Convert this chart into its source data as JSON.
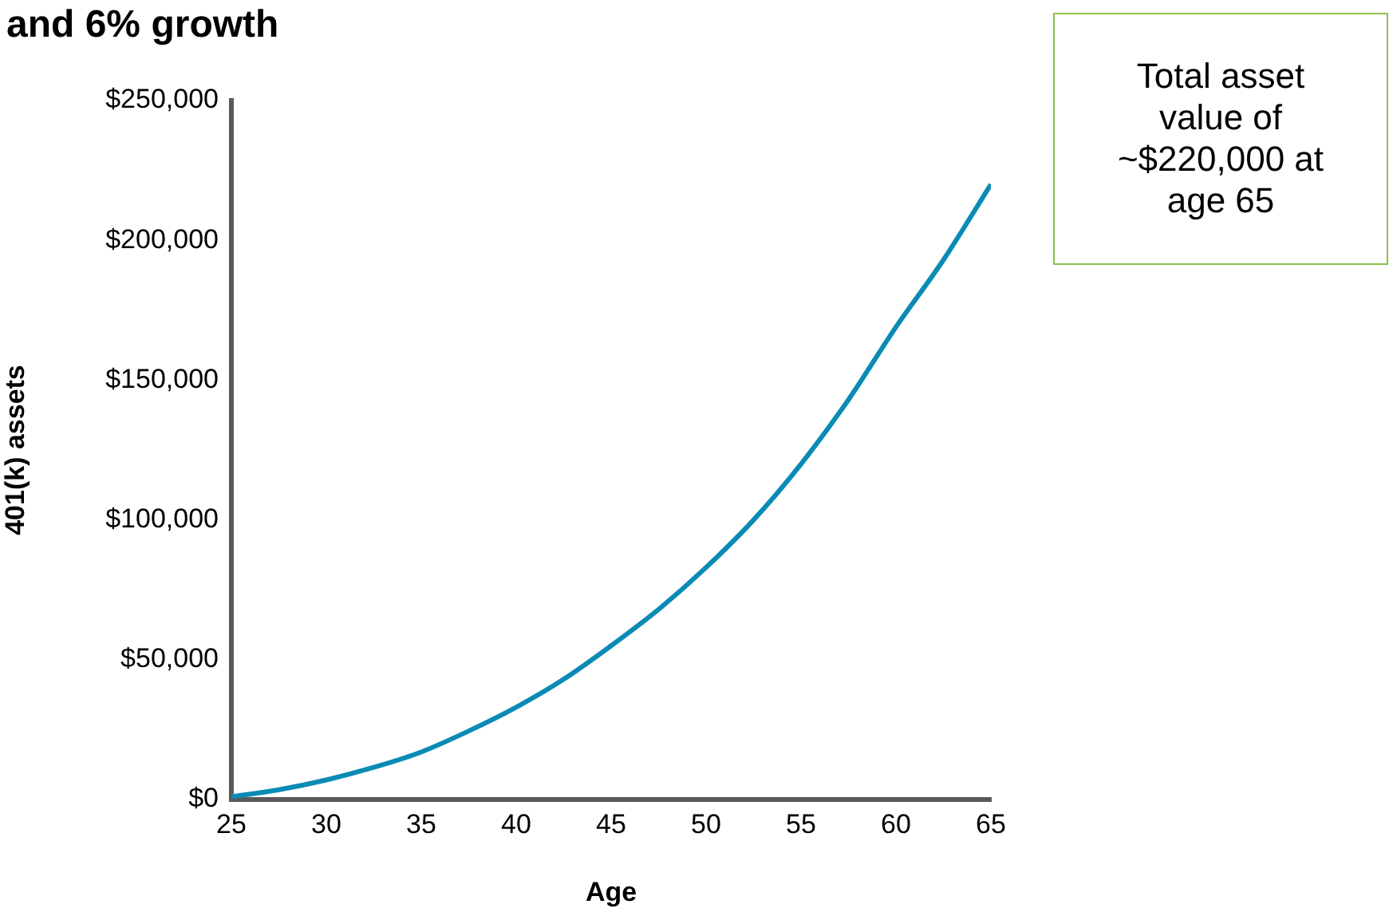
{
  "chart_data": {
    "type": "line",
    "title": "and 6% growth",
    "xlabel": "Age",
    "ylabel": "401(k) assets",
    "x": [
      25,
      27.5,
      30,
      32.5,
      35,
      37.5,
      40,
      42.5,
      45,
      47.5,
      50,
      52.5,
      55,
      57.5,
      60,
      62.5,
      65
    ],
    "series": [
      {
        "color": "#0a8bb5",
        "values": [
          1000,
          3500,
          7000,
          11500,
          17000,
          24500,
          33000,
          43000,
          55000,
          68000,
          83000,
          100000,
          120000,
          143000,
          169000,
          193000,
          220000
        ]
      }
    ],
    "xlim": [
      25,
      65
    ],
    "xticks": [
      25,
      30,
      35,
      40,
      45,
      50,
      55,
      60,
      65
    ],
    "ylim": [
      0,
      250000
    ],
    "yticks": [
      {
        "value": 0,
        "label": "$0"
      },
      {
        "value": 50000,
        "label": "$50,000"
      },
      {
        "value": 100000,
        "label": "$100,000"
      },
      {
        "value": 150000,
        "label": "$150,000"
      },
      {
        "value": 200000,
        "label": "$200,000"
      },
      {
        "value": 250000,
        "label": "$250,000"
      }
    ],
    "grid": false,
    "legend": false,
    "marker": "none",
    "line_style": "solid",
    "annotations": [
      "Total asset value of ~$220,000 at age 65"
    ]
  }
}
